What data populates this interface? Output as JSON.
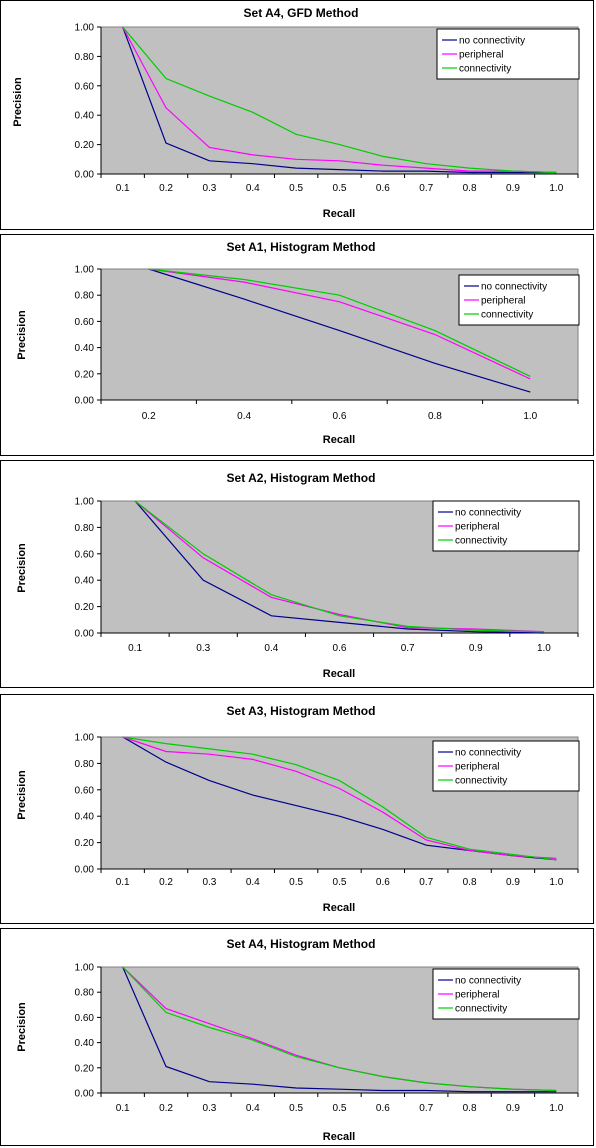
{
  "chart_data": [
    {
      "type": "line",
      "title": "Set A4, GFD Method",
      "xlabel": "Recall",
      "ylabel": "Precision",
      "categories": [
        "0.1",
        "0.2",
        "0.3",
        "0.4",
        "0.5",
        "0.5",
        "0.6",
        "0.7",
        "0.8",
        "0.9",
        "1.0"
      ],
      "ylim": [
        0,
        1
      ],
      "yticks": [
        "0.00",
        "0.20",
        "0.40",
        "0.60",
        "0.80",
        "1.00"
      ],
      "grid": false,
      "legend_position": "top-right",
      "series": [
        {
          "name": "no connectivity",
          "color": "#00008b",
          "values": [
            1.0,
            0.21,
            0.09,
            0.07,
            0.04,
            0.03,
            0.02,
            0.02,
            0.01,
            0.01,
            0.01
          ]
        },
        {
          "name": "peripheral",
          "color": "#ff00ff",
          "values": [
            1.0,
            0.45,
            0.18,
            0.13,
            0.1,
            0.09,
            0.06,
            0.04,
            0.02,
            0.02,
            0.01
          ]
        },
        {
          "name": "connectivity",
          "color": "#00cc00",
          "values": [
            1.0,
            0.65,
            0.53,
            0.42,
            0.27,
            0.2,
            0.12,
            0.07,
            0.04,
            0.02,
            0.01
          ]
        }
      ]
    },
    {
      "type": "line",
      "title": "Set A1, Histogram Method",
      "xlabel": "Recall",
      "ylabel": "Precision",
      "categories": [
        "0.2",
        "0.4",
        "0.6",
        "0.8",
        "1.0"
      ],
      "ylim": [
        0,
        1
      ],
      "yticks": [
        "0.00",
        "0.20",
        "0.40",
        "0.60",
        "0.80",
        "1.00"
      ],
      "grid": false,
      "legend_position": "top-right",
      "series": [
        {
          "name": "no connectivity",
          "color": "#00008b",
          "values": [
            1.0,
            0.77,
            0.53,
            0.28,
            0.06
          ]
        },
        {
          "name": "peripheral",
          "color": "#ff00ff",
          "values": [
            1.0,
            0.9,
            0.75,
            0.5,
            0.16
          ]
        },
        {
          "name": "connectivity",
          "color": "#00cc00",
          "values": [
            1.0,
            0.92,
            0.8,
            0.53,
            0.18
          ]
        }
      ]
    },
    {
      "type": "line",
      "title": "Set A2, Histogram Method",
      "xlabel": "Recall",
      "ylabel": "Precision",
      "categories": [
        "0.1",
        "0.3",
        "0.4",
        "0.6",
        "0.7",
        "0.9",
        "1.0"
      ],
      "ylim": [
        0,
        1
      ],
      "yticks": [
        "0.00",
        "0.20",
        "0.40",
        "0.60",
        "0.80",
        "1.00"
      ],
      "grid": false,
      "legend_position": "top-right",
      "series": [
        {
          "name": "no connectivity",
          "color": "#00008b",
          "values": [
            1.0,
            0.4,
            0.13,
            0.08,
            0.03,
            0.01,
            0.0
          ]
        },
        {
          "name": "peripheral",
          "color": "#ff00ff",
          "values": [
            1.0,
            0.57,
            0.27,
            0.14,
            0.04,
            0.03,
            0.01
          ]
        },
        {
          "name": "connectivity",
          "color": "#00cc00",
          "values": [
            1.0,
            0.6,
            0.29,
            0.13,
            0.05,
            0.02,
            0.01
          ]
        }
      ]
    },
    {
      "type": "line",
      "title": "Set A3, Histogram Method",
      "xlabel": "Recall",
      "ylabel": "Precision",
      "categories": [
        "0.1",
        "0.2",
        "0.3",
        "0.4",
        "0.5",
        "0.5",
        "0.6",
        "0.7",
        "0.8",
        "0.9",
        "1.0"
      ],
      "ylim": [
        0,
        1
      ],
      "yticks": [
        "0.00",
        "0.20",
        "0.40",
        "0.60",
        "0.80",
        "1.00"
      ],
      "grid": false,
      "legend_position": "top-right",
      "series": [
        {
          "name": "no connectivity",
          "color": "#00008b",
          "values": [
            1.0,
            0.81,
            0.67,
            0.56,
            0.48,
            0.4,
            0.3,
            0.18,
            0.14,
            0.1,
            0.07
          ]
        },
        {
          "name": "peripheral",
          "color": "#ff00ff",
          "values": [
            1.0,
            0.89,
            0.87,
            0.83,
            0.74,
            0.61,
            0.43,
            0.22,
            0.14,
            0.1,
            0.08
          ]
        },
        {
          "name": "connectivity",
          "color": "#00cc00",
          "values": [
            1.0,
            0.95,
            0.91,
            0.87,
            0.79,
            0.67,
            0.47,
            0.24,
            0.15,
            0.11,
            0.07
          ]
        }
      ]
    },
    {
      "type": "line",
      "title": "Set A4, Histogram Method",
      "xlabel": "Recall",
      "ylabel": "Precision",
      "categories": [
        "0.1",
        "0.2",
        "0.3",
        "0.4",
        "0.5",
        "0.5",
        "0.6",
        "0.7",
        "0.8",
        "0.9",
        "1.0"
      ],
      "ylim": [
        0,
        1
      ],
      "yticks": [
        "0.00",
        "0.20",
        "0.40",
        "0.60",
        "0.80",
        "1.00"
      ],
      "grid": false,
      "legend_position": "top-right",
      "series": [
        {
          "name": "no connectivity",
          "color": "#00008b",
          "values": [
            1.0,
            0.21,
            0.09,
            0.07,
            0.04,
            0.03,
            0.02,
            0.02,
            0.01,
            0.01,
            0.01
          ]
        },
        {
          "name": "peripheral",
          "color": "#ff00ff",
          "values": [
            1.0,
            0.67,
            0.55,
            0.43,
            0.3,
            0.2,
            0.13,
            0.08,
            0.05,
            0.03,
            0.02
          ]
        },
        {
          "name": "connectivity",
          "color": "#00cc00",
          "values": [
            1.0,
            0.64,
            0.52,
            0.42,
            0.29,
            0.2,
            0.13,
            0.08,
            0.05,
            0.03,
            0.02
          ]
        }
      ]
    }
  ]
}
